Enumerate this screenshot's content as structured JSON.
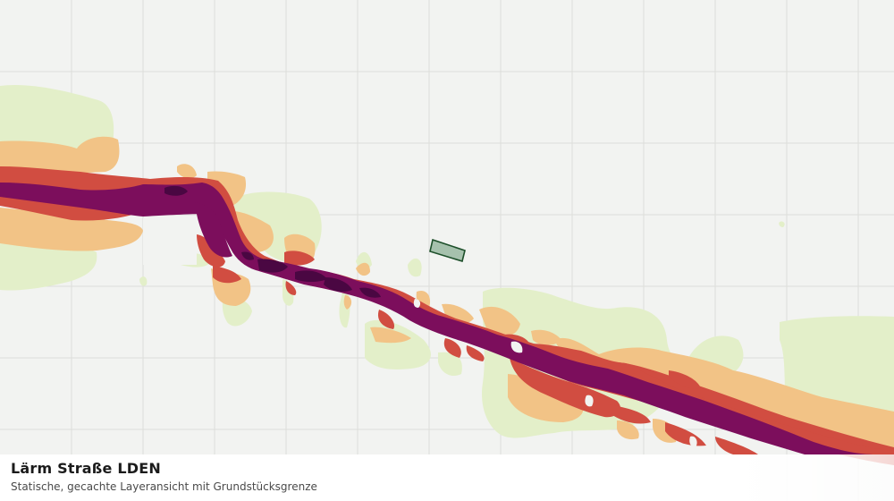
{
  "map": {
    "layer_title": "Lärm Straße LDEN",
    "layer_subtitle": "Statische, gecachte Layeransicht mit Grundstücksgrenze",
    "colors": {
      "background": "#f2f3f1",
      "grid": "#dcdedb",
      "band_1_light_green": "#e3efc9",
      "band_2_beige": "#f2c386",
      "band_3_red": "#d14d41",
      "band_4_purple": "#7c0e5c",
      "band_5_dark_purple": "#4a0742",
      "parcel_fill": "#a6c1ad",
      "parcel_stroke": "#1d4f2a"
    }
  }
}
